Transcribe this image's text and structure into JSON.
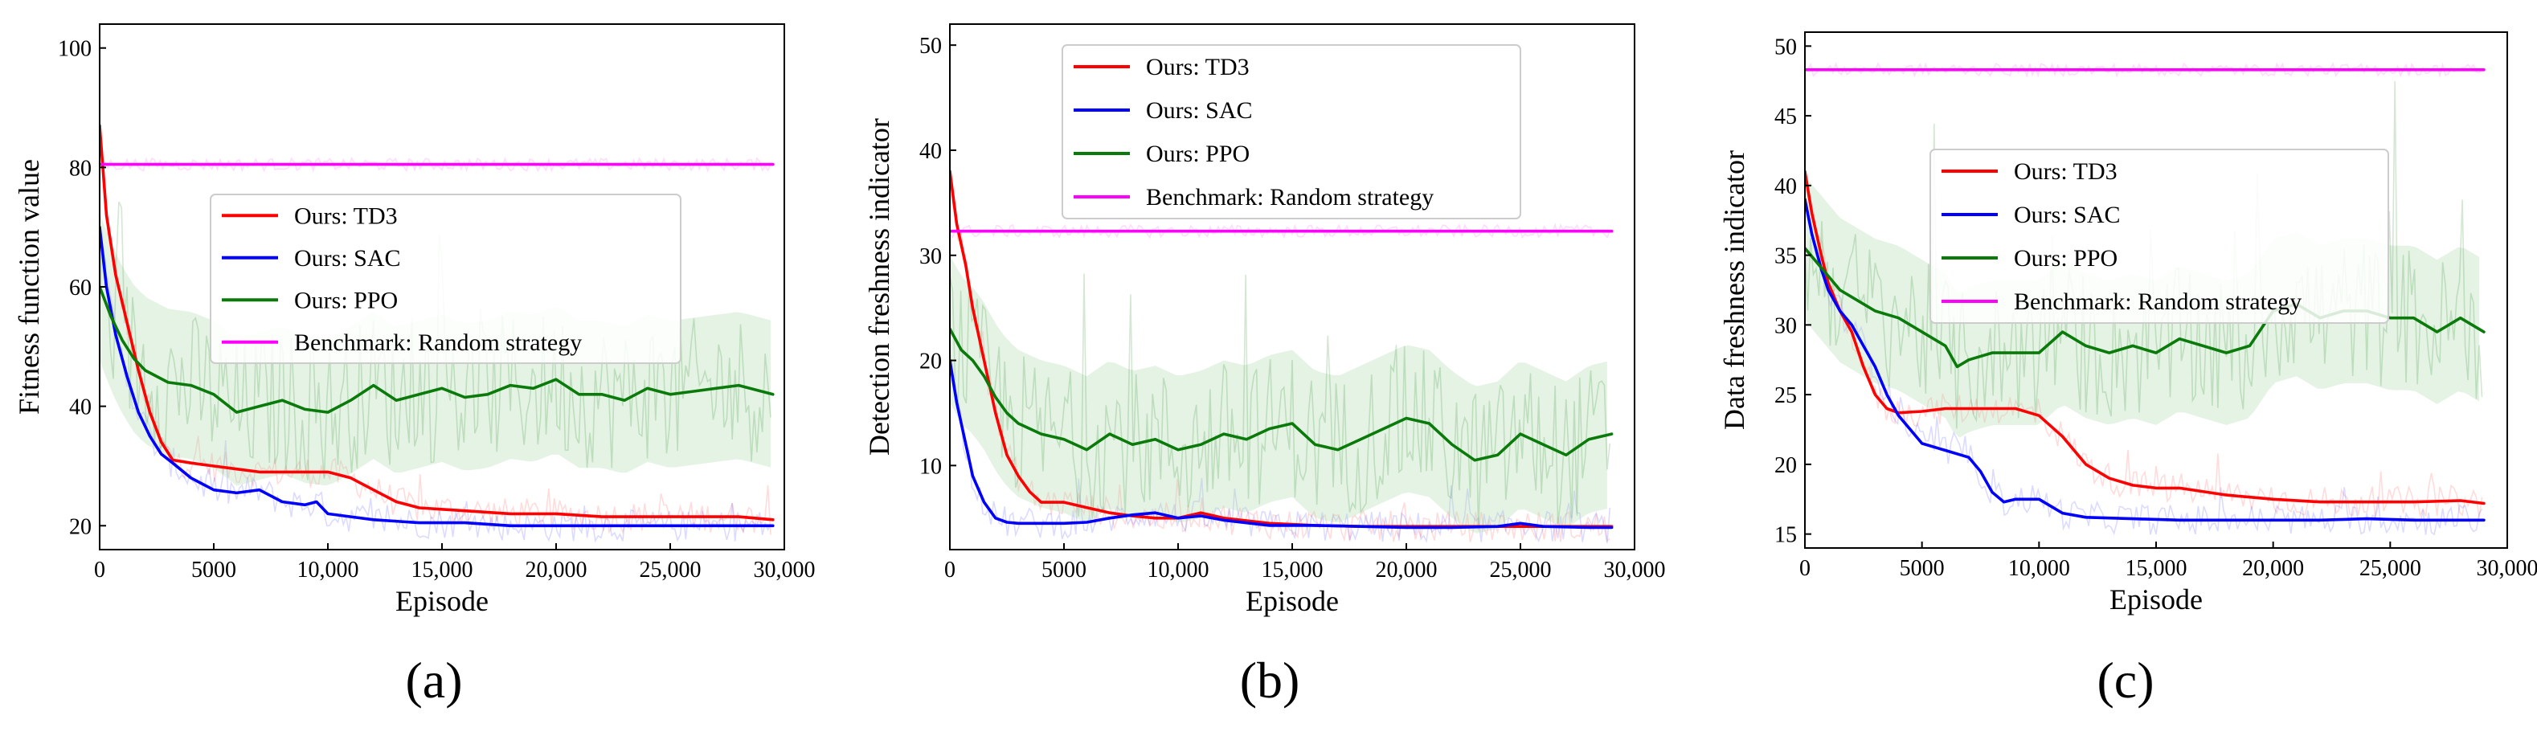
{
  "chart_data": [
    {
      "type": "line",
      "panel_label": "(a)",
      "xlabel": "Episode",
      "ylabel": "Fitness function value",
      "xlim": [
        0,
        30000
      ],
      "ylim": [
        16,
        104
      ],
      "xticks": [
        0,
        5000,
        10000,
        15000,
        20000,
        25000,
        30000
      ],
      "xtick_labels": [
        "0",
        "5000",
        "10,000",
        "15,000",
        "20,000",
        "25,000",
        "30,000"
      ],
      "yticks": [
        20,
        40,
        60,
        80,
        100
      ],
      "ytick_labels": [
        "20",
        "40",
        "60",
        "80",
        "100"
      ],
      "legend_position": "center",
      "series": [
        {
          "name": "Ours: TD3",
          "color": "#ff0000",
          "x": [
            0,
            300,
            700,
            1200,
            1700,
            2200,
            2700,
            3200,
            4000,
            5000,
            6000,
            7000,
            8000,
            9000,
            10000,
            11000,
            12000,
            13000,
            14000,
            16000,
            18000,
            20000,
            22000,
            24000,
            26000,
            28000,
            29500
          ],
          "y": [
            87,
            72,
            62,
            54,
            46,
            39,
            34,
            31,
            30.5,
            30,
            29.5,
            29,
            29,
            29,
            29,
            28,
            26,
            24,
            23,
            22.5,
            22,
            22,
            21.5,
            21.5,
            21.5,
            21.5,
            21
          ]
        },
        {
          "name": "Ours: SAC",
          "color": "#0000ff",
          "x": [
            0,
            300,
            700,
            1200,
            1700,
            2200,
            2700,
            3200,
            4000,
            5000,
            6000,
            7000,
            8000,
            9000,
            9500,
            10000,
            11000,
            12000,
            14000,
            16000,
            18000,
            20000,
            22000,
            24000,
            26000,
            28000,
            29500
          ],
          "y": [
            70,
            60,
            52,
            45,
            39,
            35,
            32,
            30.5,
            28,
            26,
            25.5,
            26,
            24,
            23.5,
            24,
            22,
            21.5,
            21,
            20.5,
            20.5,
            20,
            20,
            20,
            20,
            20,
            20,
            20
          ]
        },
        {
          "name": "Ours: PPO",
          "color": "#0a7a0a",
          "band_color": "#b5dcb5",
          "x": [
            0,
            500,
            1000,
            1500,
            2000,
            3000,
            4000,
            5000,
            6000,
            7000,
            8000,
            9000,
            10000,
            11000,
            12000,
            13000,
            14000,
            15000,
            16000,
            17000,
            18000,
            19000,
            20000,
            21000,
            22000,
            23000,
            24000,
            25000,
            26000,
            27000,
            28000,
            29500
          ],
          "y": [
            60,
            55,
            51,
            48,
            46,
            44,
            43.5,
            42,
            39,
            40,
            41,
            39.5,
            39,
            41,
            43.5,
            41,
            42,
            43,
            41.5,
            42,
            43.5,
            43,
            44.5,
            42,
            42,
            41,
            43,
            42,
            42.5,
            43,
            43.5,
            42
          ]
        },
        {
          "name": "Benchmark: Random strategy",
          "color": "#ff00ff",
          "x": [
            0,
            29500
          ],
          "y": [
            80.5,
            80.5
          ]
        }
      ]
    },
    {
      "type": "line",
      "panel_label": "(b)",
      "xlabel": "Episode",
      "ylabel": "Detection freshness indicator",
      "xlim": [
        0,
        30000
      ],
      "ylim": [
        2,
        52
      ],
      "xticks": [
        0,
        5000,
        10000,
        15000,
        20000,
        25000,
        30000
      ],
      "xtick_labels": [
        "0",
        "5000",
        "10,000",
        "15,000",
        "20,000",
        "25,000",
        "30,000"
      ],
      "yticks": [
        10,
        20,
        30,
        40,
        50
      ],
      "ytick_labels": [
        "10",
        "20",
        "30",
        "40",
        "50"
      ],
      "legend_position": "top-center",
      "series": [
        {
          "name": "Ours: TD3",
          "color": "#ff0000",
          "x": [
            0,
            300,
            700,
            1000,
            1500,
            2000,
            2500,
            3000,
            3500,
            4000,
            5000,
            6000,
            7000,
            8000,
            9000,
            10000,
            11000,
            12000,
            14000,
            16000,
            18000,
            20000,
            22000,
            24000,
            26000,
            28000,
            29000
          ],
          "y": [
            38,
            33,
            29,
            25,
            20,
            15,
            11,
            9,
            7.5,
            6.5,
            6.5,
            6,
            5.5,
            5.2,
            5,
            5,
            5.5,
            5,
            4.5,
            4.3,
            4.2,
            4.2,
            4.2,
            4.2,
            4.2,
            4.2,
            4.2
          ]
        },
        {
          "name": "Ours: SAC",
          "color": "#0000ff",
          "x": [
            0,
            300,
            700,
            1000,
            1500,
            2000,
            2500,
            3000,
            4000,
            5000,
            6000,
            7000,
            8000,
            9000,
            10000,
            11000,
            12000,
            14000,
            16000,
            18000,
            20000,
            22000,
            24000,
            25000,
            26000,
            28000,
            29000
          ],
          "y": [
            20,
            16,
            12,
            9,
            6.5,
            5,
            4.6,
            4.5,
            4.5,
            4.5,
            4.6,
            5,
            5.3,
            5.5,
            5,
            5.2,
            4.8,
            4.3,
            4.3,
            4.2,
            4.1,
            4.1,
            4.2,
            4.5,
            4.2,
            4.1,
            4.1
          ]
        },
        {
          "name": "Ours: PPO",
          "color": "#0a7a0a",
          "band_color": "#b5dcb5",
          "x": [
            0,
            500,
            1000,
            1500,
            2000,
            2500,
            3000,
            4000,
            5000,
            6000,
            7000,
            8000,
            9000,
            10000,
            11000,
            12000,
            13000,
            14000,
            15000,
            16000,
            17000,
            18000,
            19000,
            20000,
            21000,
            22000,
            23000,
            24000,
            25000,
            26000,
            27000,
            28000,
            29000
          ],
          "y": [
            23,
            21,
            20,
            18.5,
            16.5,
            15,
            14,
            13,
            12.5,
            11.5,
            13,
            12,
            12.5,
            11.5,
            12,
            13,
            12.5,
            13.5,
            14,
            12,
            11.5,
            12.5,
            13.5,
            14.5,
            14,
            12,
            10.5,
            11,
            13,
            12,
            11,
            12.5,
            13
          ]
        },
        {
          "name": "Benchmark: Random strategy",
          "color": "#ff00ff",
          "x": [
            0,
            29000
          ],
          "y": [
            32.3,
            32.3
          ]
        }
      ]
    },
    {
      "type": "line",
      "panel_label": "(c)",
      "xlabel": "Episode",
      "ylabel": "Data freshness indicator",
      "xlim": [
        0,
        30000
      ],
      "ylim": [
        14,
        51
      ],
      "xticks": [
        0,
        5000,
        10000,
        15000,
        20000,
        25000,
        30000
      ],
      "xtick_labels": [
        "0",
        "5000",
        "10,000",
        "15,000",
        "20,000",
        "25,000",
        "30,000"
      ],
      "yticks": [
        15,
        20,
        25,
        30,
        35,
        40,
        45,
        50
      ],
      "ytick_labels": [
        "15",
        "20",
        "25",
        "30",
        "35",
        "40",
        "45",
        "50"
      ],
      "legend_position": "center",
      "series": [
        {
          "name": "Ours: TD3",
          "color": "#ff0000",
          "x": [
            0,
            300,
            700,
            1000,
            1500,
            2000,
            2500,
            3000,
            3500,
            4000,
            5000,
            6000,
            7000,
            8000,
            9000,
            10000,
            11000,
            12000,
            13000,
            14000,
            15000,
            16000,
            18000,
            20000,
            22000,
            24000,
            26000,
            28000,
            29000
          ],
          "y": [
            41,
            38,
            35,
            33,
            31,
            29.5,
            27,
            25,
            24,
            23.7,
            23.8,
            24,
            24,
            24,
            24,
            23.5,
            22,
            20,
            19,
            18.5,
            18.3,
            18.3,
            17.8,
            17.5,
            17.3,
            17.3,
            17.3,
            17.4,
            17.2
          ]
        },
        {
          "name": "Ours: SAC",
          "color": "#0000ff",
          "x": [
            0,
            300,
            700,
            1000,
            1500,
            2000,
            2500,
            3000,
            3500,
            4000,
            5000,
            6000,
            7000,
            7500,
            8000,
            8500,
            9000,
            10000,
            11000,
            12000,
            14000,
            16000,
            18000,
            20000,
            22000,
            24000,
            26000,
            28000,
            29000
          ],
          "y": [
            39,
            36.5,
            34,
            32.5,
            31,
            30,
            28.5,
            27,
            25,
            23.5,
            21.5,
            21,
            20.5,
            19.5,
            18,
            17.3,
            17.5,
            17.5,
            16.5,
            16.2,
            16.1,
            16,
            16,
            16,
            16,
            16.1,
            16,
            16,
            16
          ]
        },
        {
          "name": "Ours: PPO",
          "color": "#0a7a0a",
          "band_color": "#b5dcb5",
          "x": [
            0,
            500,
            1000,
            1500,
            2000,
            3000,
            4000,
            5000,
            6000,
            6500,
            7000,
            8000,
            9000,
            10000,
            11000,
            12000,
            13000,
            14000,
            15000,
            16000,
            17000,
            18000,
            19000,
            20000,
            21000,
            22000,
            23000,
            24000,
            25000,
            26000,
            27000,
            28000,
            29000
          ],
          "y": [
            35.5,
            34.5,
            33.5,
            32.5,
            32,
            31,
            30.5,
            29.5,
            28.5,
            27,
            27.5,
            28,
            28,
            28,
            29.5,
            28.5,
            28,
            28.5,
            28,
            29,
            28.5,
            28,
            28.5,
            31,
            31.5,
            30.5,
            31,
            31,
            30.5,
            30.5,
            29.5,
            30.5,
            29.5
          ]
        },
        {
          "name": "Benchmark: Random strategy",
          "color": "#ff00ff",
          "x": [
            0,
            29000
          ],
          "y": [
            48.3,
            48.3
          ]
        }
      ]
    }
  ]
}
